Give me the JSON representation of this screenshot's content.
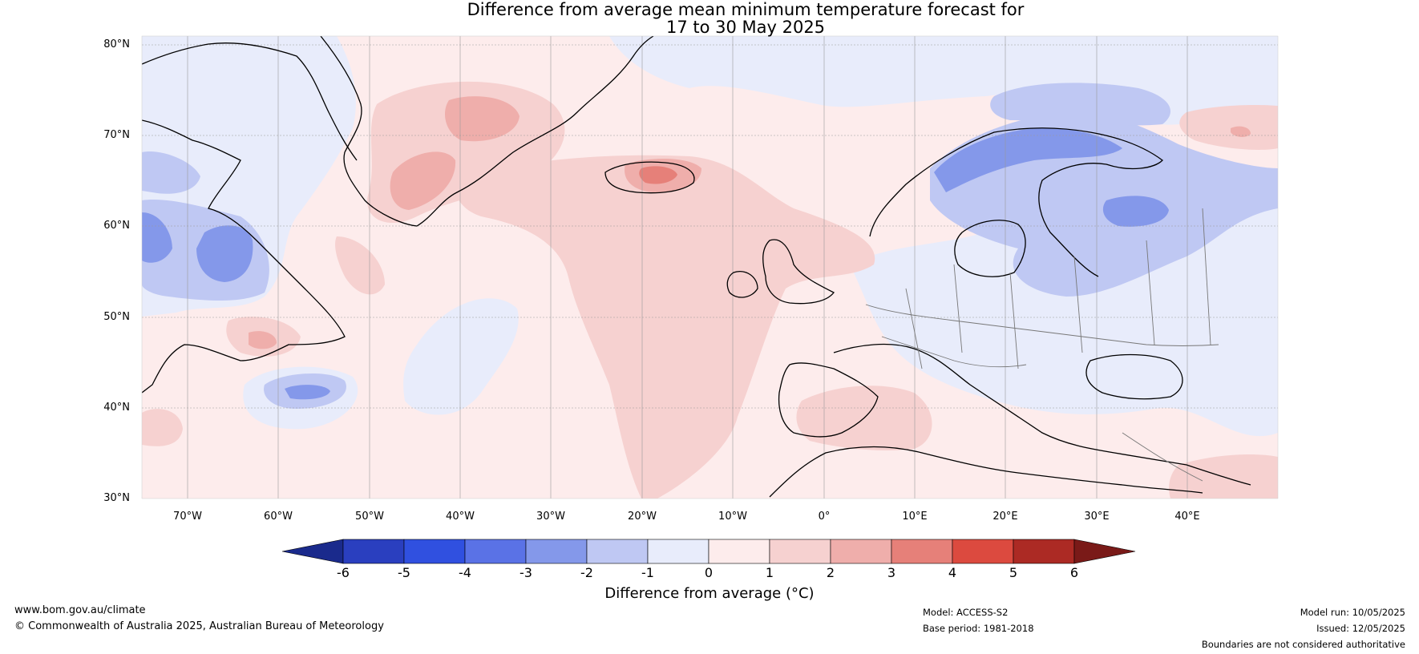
{
  "title_line1": "Difference from average mean minimum temperature forecast for",
  "title_line2": "17 to 30 May 2025",
  "lat_labels": [
    "80°N",
    "70°N",
    "60°N",
    "50°N",
    "40°N",
    "30°N"
  ],
  "lon_labels": [
    "70°W",
    "60°W",
    "50°W",
    "40°W",
    "30°W",
    "20°W",
    "10°W",
    "0°",
    "10°E",
    "20°E",
    "30°E",
    "40°E"
  ],
  "colorbar": {
    "ticks": [
      "-6",
      "-5",
      "-4",
      "-3",
      "-2",
      "-1",
      "0",
      "1",
      "2",
      "3",
      "4",
      "5",
      "6"
    ],
    "colors": [
      "#1a2a8c",
      "#2a3fbf",
      "#3050e0",
      "#5a72e6",
      "#8498ea",
      "#bfc8f3",
      "#e8ecfb",
      "#fdecec",
      "#f6d1d0",
      "#efaeab",
      "#e68079",
      "#dc4a3f",
      "#ac2a24",
      "#7a1a18"
    ],
    "label": "Difference from average (°C)"
  },
  "footer": {
    "url": "www.bom.gov.au/climate",
    "copyright": "© Commonwealth of Australia 2025, Australian Bureau of Meteorology",
    "model": "Model: ACCESS-S2",
    "base_period": "Base period: 1981-2018",
    "model_run": "Model run: 10/05/2025",
    "issued": "Issued: 12/05/2025",
    "disclaimer": "Boundaries are not considered authoritative"
  }
}
